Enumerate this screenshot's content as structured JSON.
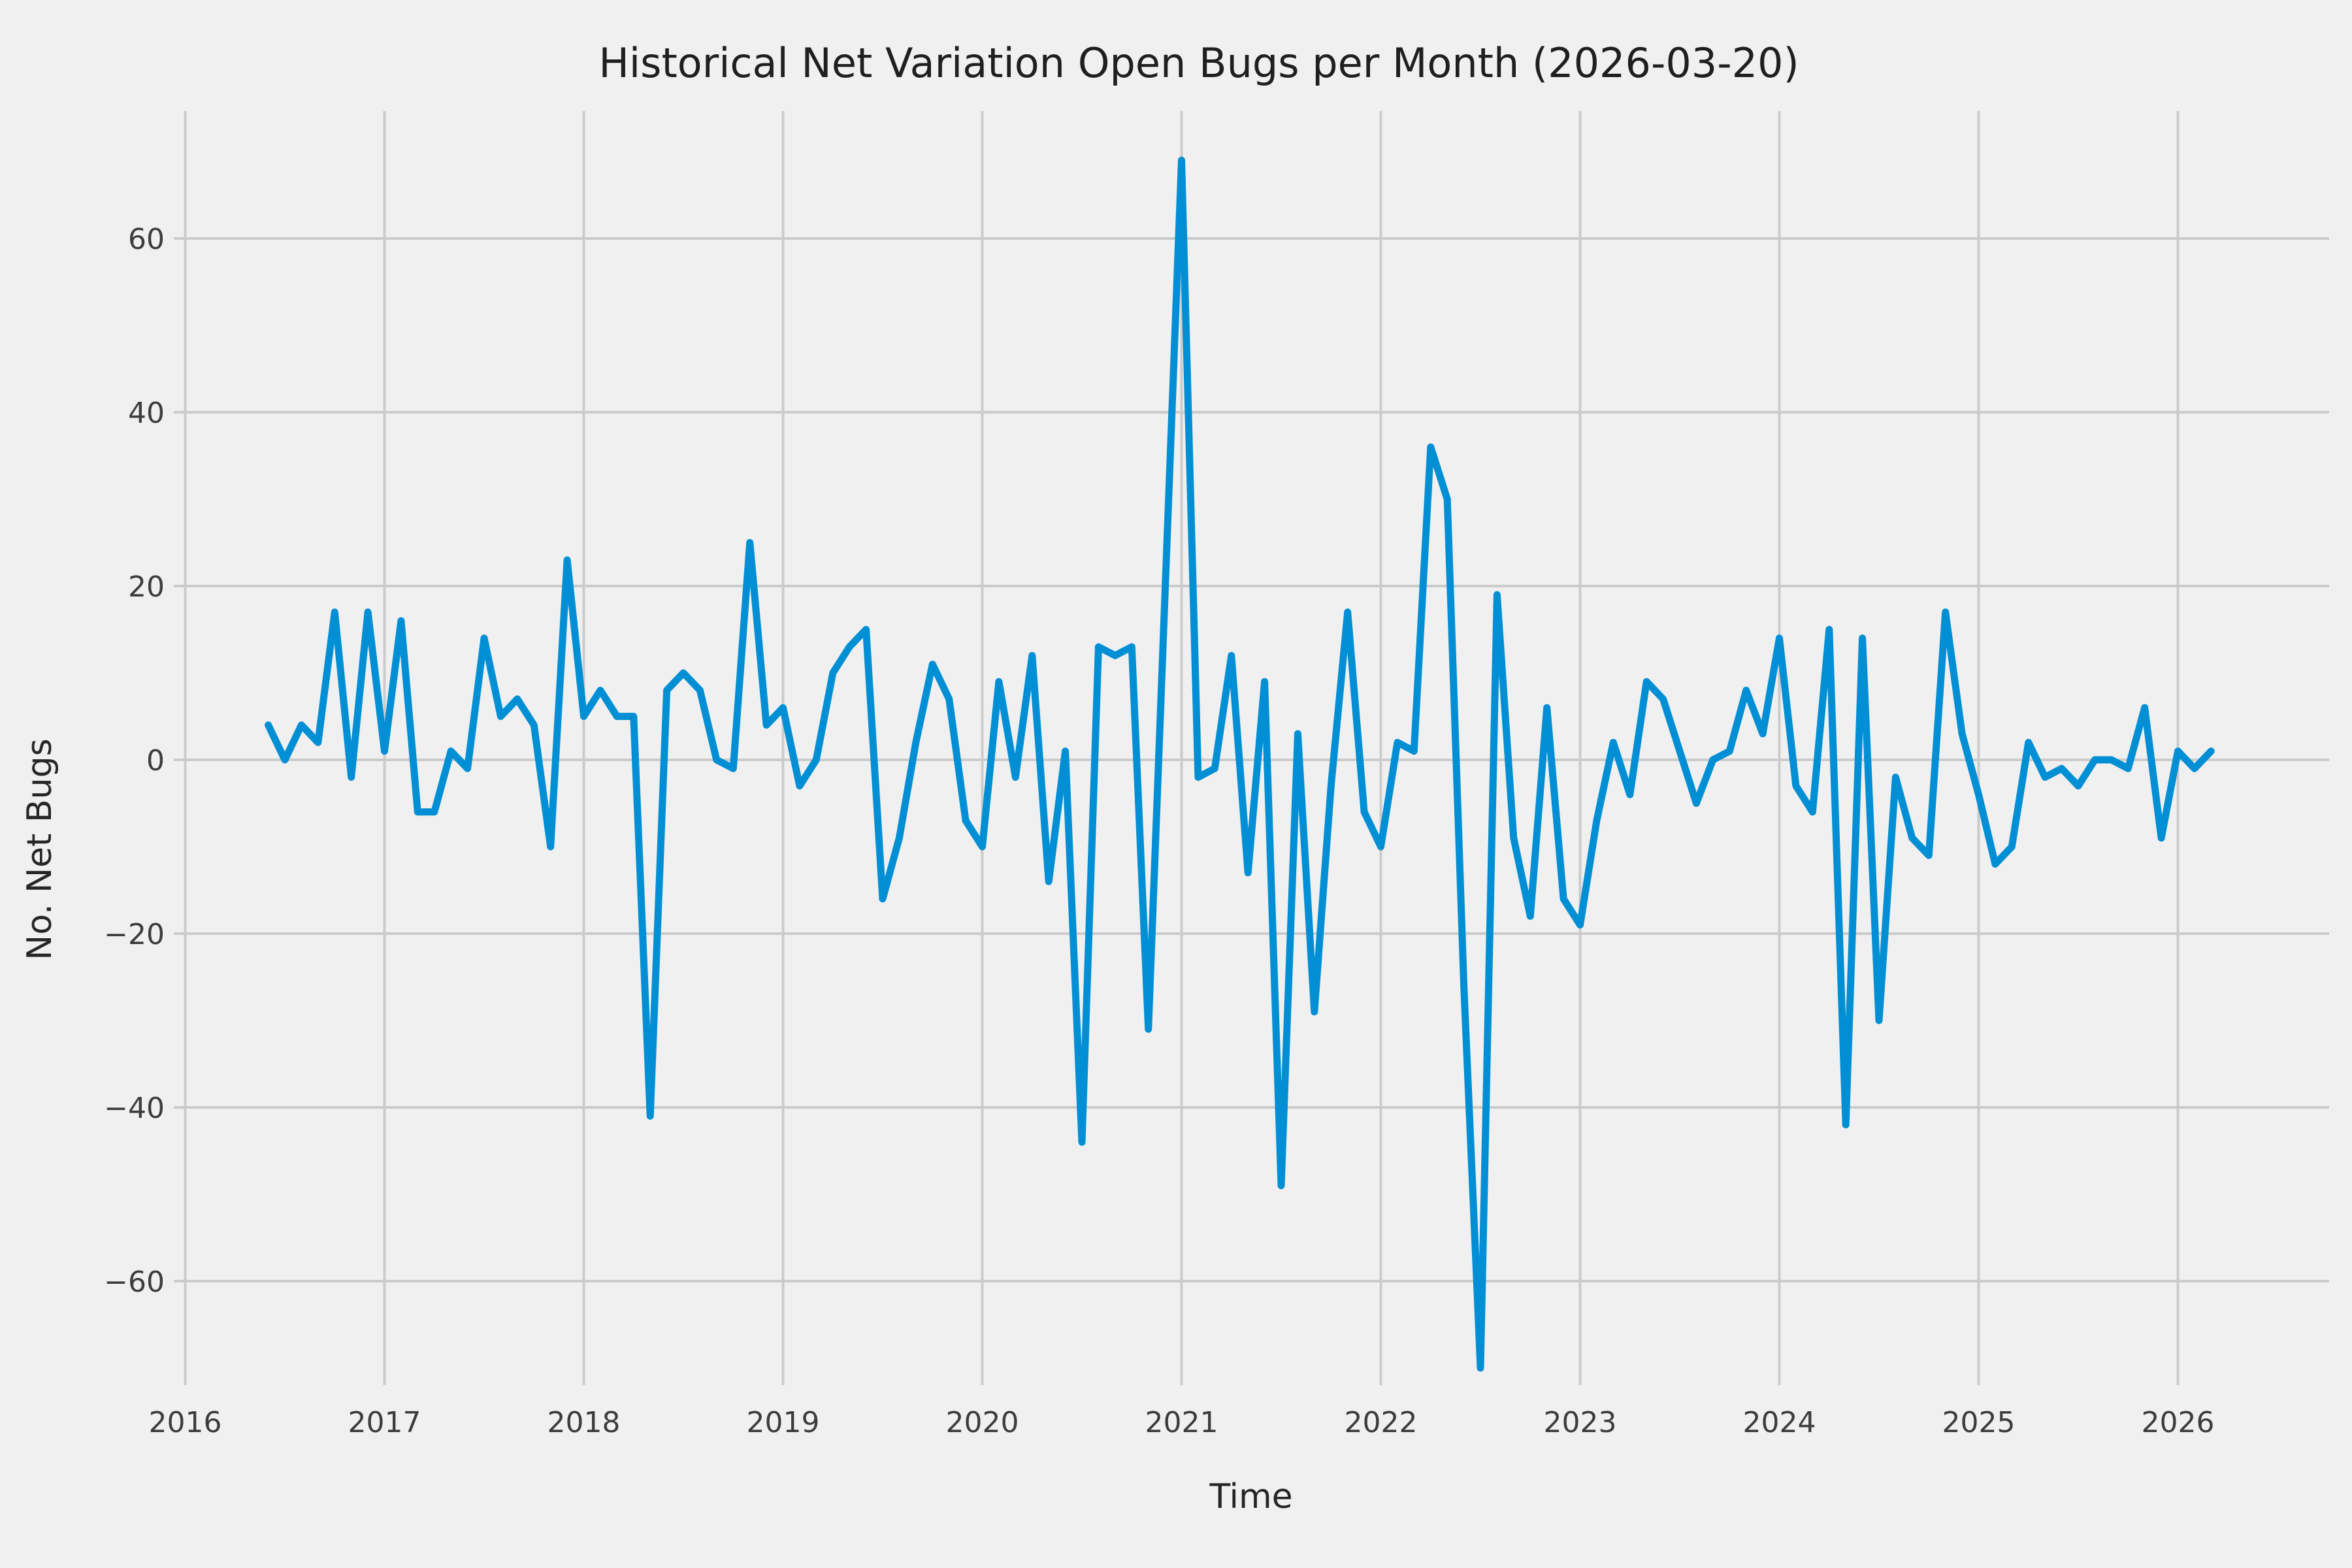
{
  "title": "Historical Net Variation Open Bugs per Month (2026-03-20)",
  "chart_data": {
    "type": "line",
    "title": "Historical Net Variation Open Bugs per Month (2026-03-20)",
    "xlabel": "Time",
    "ylabel": "No. Net Bugs",
    "legend": false,
    "grid": true,
    "style": "fivethirtyeight",
    "background_color": "#f0f0f0",
    "grid_color": "#cbcbcb",
    "line_color": "#008fd5",
    "line_width": 11,
    "text_color": "#3c3c3c",
    "start_month": "2016-06",
    "end_month": "2026-03",
    "x_tick_labels": [
      "2016",
      "2017",
      "2018",
      "2019",
      "2020",
      "2021",
      "2022",
      "2023",
      "2024",
      "2025",
      "2026"
    ],
    "y_ticks": [
      -60,
      -40,
      -20,
      0,
      20,
      40,
      60
    ],
    "y_tick_labels": [
      "−60",
      "−40",
      "−20",
      "0",
      "20",
      "40",
      "60"
    ],
    "ylim": [
      -72,
      75
    ],
    "xlim_years": [
      2015.46,
      2026.76
    ],
    "monthly_values": [
      4,
      0,
      4,
      2,
      17,
      -2,
      17,
      1,
      16,
      -6,
      -6,
      1,
      -1,
      14,
      5,
      7,
      4,
      -10,
      23,
      5,
      8,
      5,
      5,
      -41,
      8,
      10,
      8,
      0,
      -1,
      25,
      4,
      6,
      -3,
      0,
      10,
      13,
      15,
      -16,
      -9,
      2,
      11,
      7,
      -7,
      -10,
      9,
      -2,
      12,
      -14,
      1,
      -44,
      13,
      12,
      13,
      -31,
      19,
      69,
      -2,
      -1,
      12,
      -13,
      9,
      -49,
      3,
      -29,
      -3,
      17,
      -6,
      -10,
      2,
      1,
      36,
      30,
      -26,
      -70,
      19,
      -9,
      -18,
      6,
      -16,
      -19,
      -7,
      2,
      -4,
      9,
      7,
      1,
      -5,
      0,
      1,
      8,
      3,
      14,
      -3,
      -6,
      15,
      -42,
      14,
      -30,
      -2,
      -9,
      -11,
      17,
      3,
      -4,
      -12,
      -10,
      2,
      -2,
      -1,
      -3,
      0,
      0,
      -1,
      6,
      -9,
      1,
      -1,
      1
    ]
  }
}
